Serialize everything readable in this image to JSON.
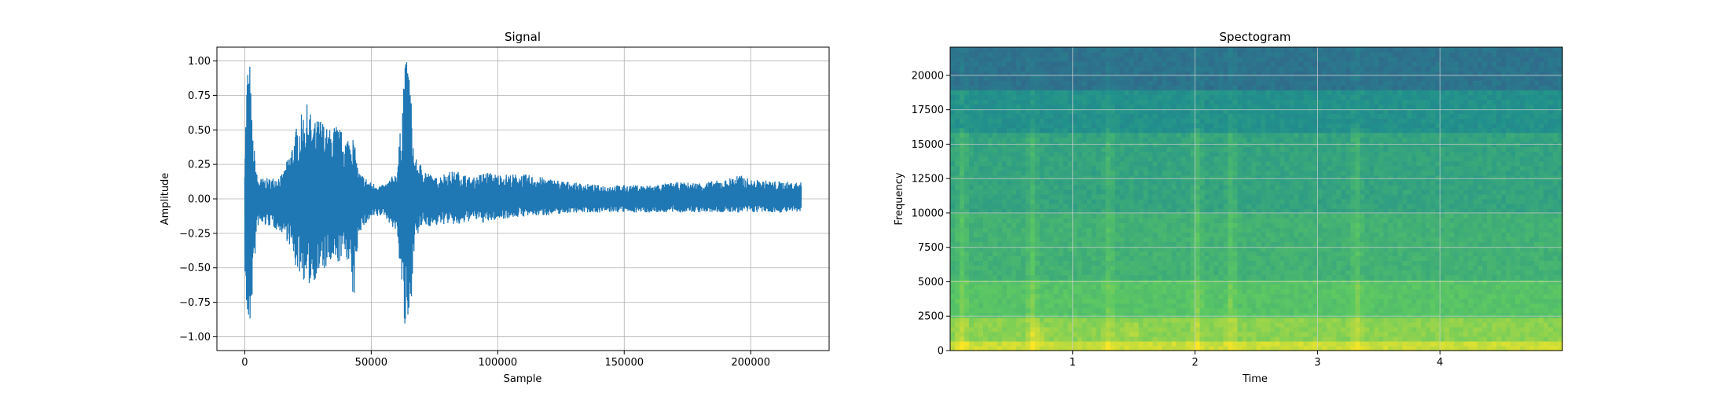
{
  "chart_data": [
    {
      "type": "line",
      "title": "Signal",
      "xlabel": "Sample",
      "ylabel": "Amplitude",
      "xlim": [
        -11000,
        231000
      ],
      "ylim": [
        -1.1,
        1.1
      ],
      "xticks": [
        0,
        50000,
        100000,
        150000,
        200000
      ],
      "xtick_labels": [
        "0",
        "50000",
        "100000",
        "150000",
        "200000"
      ],
      "yticks": [
        -1.0,
        -0.75,
        -0.5,
        -0.25,
        0.0,
        0.25,
        0.5,
        0.75,
        1.0
      ],
      "ytick_labels": [
        "−1.00",
        "−0.75",
        "−0.50",
        "−0.25",
        "0.00",
        "0.25",
        "0.50",
        "0.75",
        "1.00"
      ],
      "grid": true,
      "color": "#1f77b4",
      "series": [
        {
          "x": [
            0,
            1000,
            2000,
            3000,
            5000,
            10000,
            15000,
            18000,
            20000,
            22000,
            25000,
            27000,
            30000,
            33000,
            36000,
            40000,
            42000,
            43000,
            45000,
            50000,
            55000,
            60000,
            62000,
            63000,
            64000,
            65000,
            67000,
            70000,
            75000,
            80000,
            85000,
            90000,
            95000,
            100000,
            110000,
            120000,
            130000,
            140000,
            150000,
            160000,
            170000,
            180000,
            190000,
            195000,
            200000,
            210000,
            220000
          ],
          "upper": [
            0.35,
            1.0,
            1.0,
            0.5,
            0.15,
            0.15,
            0.18,
            0.35,
            0.5,
            0.6,
            0.7,
            0.55,
            0.6,
            0.5,
            0.55,
            0.45,
            0.5,
            0.45,
            0.2,
            0.12,
            0.1,
            0.2,
            0.6,
            1.0,
            1.0,
            1.0,
            0.3,
            0.25,
            0.15,
            0.2,
            0.2,
            0.15,
            0.2,
            0.18,
            0.18,
            0.15,
            0.12,
            0.1,
            0.1,
            0.1,
            0.12,
            0.12,
            0.14,
            0.18,
            0.14,
            0.13,
            0.12
          ],
          "lower": [
            -0.5,
            -1.0,
            -1.0,
            -0.7,
            -0.2,
            -0.2,
            -0.25,
            -0.35,
            -0.5,
            -0.55,
            -0.65,
            -0.6,
            -0.55,
            -0.5,
            -0.5,
            -0.4,
            -0.6,
            -0.8,
            -0.25,
            -0.15,
            -0.12,
            -0.25,
            -0.6,
            -1.0,
            -1.0,
            -1.0,
            -0.35,
            -0.2,
            -0.2,
            -0.18,
            -0.2,
            -0.15,
            -0.18,
            -0.15,
            -0.13,
            -0.12,
            -0.1,
            -0.1,
            -0.1,
            -0.1,
            -0.1,
            -0.1,
            -0.1,
            -0.1,
            -0.1,
            -0.1,
            -0.1
          ]
        }
      ]
    },
    {
      "type": "heatmap",
      "title": "Spectogram",
      "xlabel": "Time",
      "ylabel": "Frequency",
      "xlim": [
        0.0,
        5.0
      ],
      "ylim": [
        0,
        22050
      ],
      "xticks": [
        1,
        2,
        3,
        4
      ],
      "xtick_labels": [
        "1",
        "2",
        "3",
        "4"
      ],
      "yticks": [
        0,
        2500,
        5000,
        7500,
        10000,
        12500,
        15000,
        17500,
        20000
      ],
      "ytick_labels": [
        "0",
        "2500",
        "5000",
        "7500",
        "10000",
        "12500",
        "15000",
        "17500",
        "20000"
      ],
      "grid": true,
      "colormap": "viridis",
      "freq_bands": [
        {
          "f0": 0,
          "f1": 800,
          "level": 0.92
        },
        {
          "f0": 800,
          "f1": 2500,
          "level": 0.82
        },
        {
          "f0": 2500,
          "f1": 5000,
          "level": 0.72
        },
        {
          "f0": 5000,
          "f1": 10000,
          "level": 0.64
        },
        {
          "f0": 10000,
          "f1": 16000,
          "level": 0.58
        },
        {
          "f0": 16000,
          "f1": 19000,
          "level": 0.5
        },
        {
          "f0": 19000,
          "f1": 22050,
          "level": 0.38
        }
      ],
      "onsets": [
        0.08,
        0.65,
        1.28,
        2.0,
        2.28,
        3.3
      ],
      "hotspots": [
        {
          "t": 0.7,
          "f": 1000
        },
        {
          "t": 1.45,
          "f": 1200
        }
      ]
    }
  ]
}
